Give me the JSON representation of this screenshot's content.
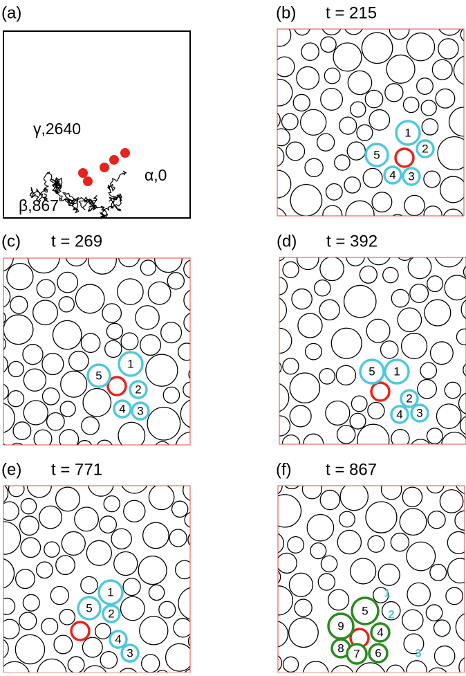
{
  "panels": [
    {
      "label": "(a)",
      "annotations": [
        "γ,2640",
        "β,867",
        "α,0"
      ]
    },
    {
      "label": "(b)",
      "time": "t = 215",
      "particles": [
        "1",
        "2",
        "3",
        "4",
        "5"
      ]
    },
    {
      "label": "(c)",
      "time": "t = 269",
      "particles": [
        "1",
        "2",
        "3",
        "4",
        "5"
      ]
    },
    {
      "label": "(d)",
      "time": "t = 392",
      "particles": [
        "1",
        "2",
        "3",
        "4",
        "5"
      ]
    },
    {
      "label": "(e)",
      "time": "t = 771",
      "particles": [
        "1",
        "2",
        "3",
        "4",
        "5"
      ]
    },
    {
      "label": "(f)",
      "time": "t = 867",
      "particles": [
        "1",
        "2",
        "3",
        "4",
        "5",
        "6",
        "7",
        "8",
        "9"
      ]
    }
  ]
}
